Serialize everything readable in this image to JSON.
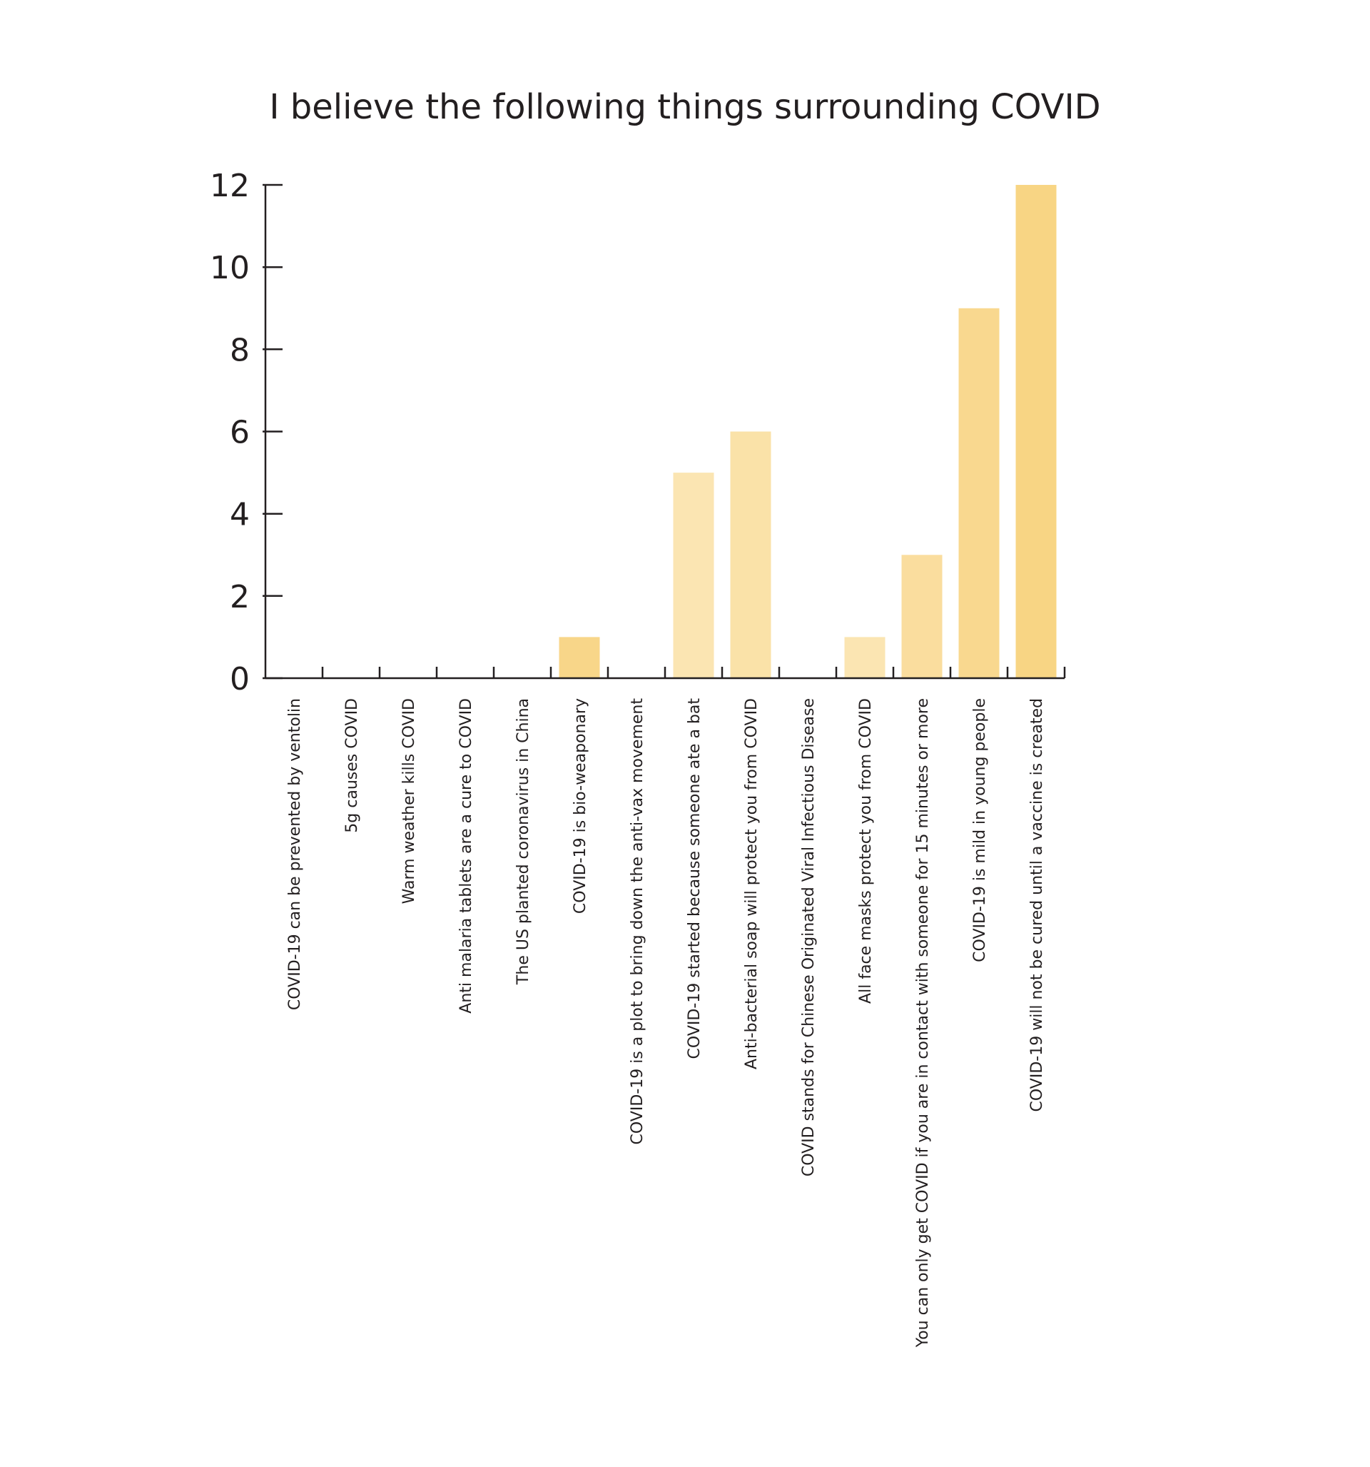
{
  "chart_data": {
    "type": "bar",
    "title": "I believe the following things surrounding COVID",
    "xlabel": "",
    "ylabel": "",
    "ylim": [
      0,
      12
    ],
    "yticks": [
      0,
      2,
      4,
      6,
      8,
      10,
      12
    ],
    "grid": false,
    "legend": "none",
    "categories": [
      "COVID-19 can be prevented by ventolin",
      "5g causes COVID",
      "Warm weather kills COVID",
      "Anti malaria tablets are a cure to COVID",
      "The US planted coronavirus in China",
      "COVID-19 is bio-weaponary",
      "COVID-19 is a plot to bring down the anti-vax movement",
      "COVID-19 started because someone ate a bat",
      "Anti-bacterial soap will protect you from COVID",
      "COVID stands for Chinese Originated Viral Infectious Disease",
      "All face masks protect you from COVID",
      "You can only get COVID if you are in contact with someone for 15 minutes or more",
      "COVID-19 is mild in young people",
      "COVID-19 will not be cured until a vaccine is created"
    ],
    "values": [
      0,
      0,
      0,
      0,
      0,
      1,
      0,
      5,
      6,
      0,
      1,
      3,
      9,
      12
    ],
    "bar_colors": [
      "#f8d689",
      "#f8d689",
      "#f8d689",
      "#f8d689",
      "#f8d689",
      "#f8d689",
      "#f8d689",
      "#fbe5b2",
      "#fae2a8",
      "#f8d689",
      "#fbe5b2",
      "#fadd9e",
      "#f9d88f",
      "#f8d584"
    ],
    "axis_color": "#231f20",
    "text_color": "#231f20"
  }
}
